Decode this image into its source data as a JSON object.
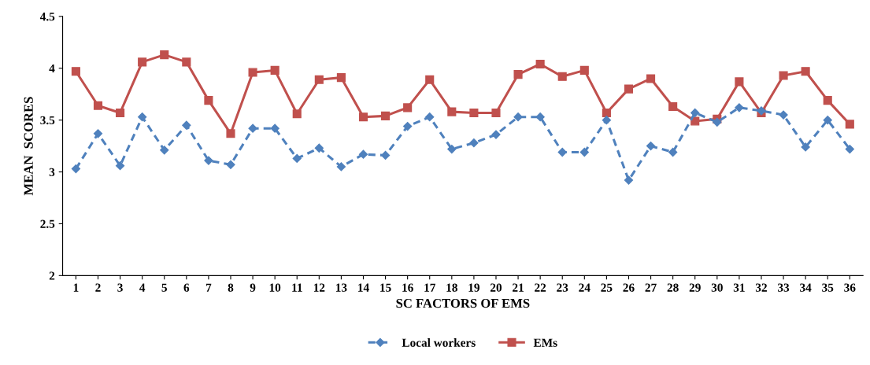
{
  "chart_data": {
    "type": "line",
    "xlabel": "SC FACTORS OF EMS",
    "ylabel": "MEAN  SCORES",
    "categories": [
      "1",
      "2",
      "3",
      "4",
      "5",
      "6",
      "7",
      "8",
      "9",
      "10",
      "11",
      "12",
      "13",
      "14",
      "15",
      "16",
      "17",
      "18",
      "19",
      "20",
      "21",
      "22",
      "23",
      "24",
      "25",
      "26",
      "27",
      "28",
      "29",
      "30",
      "31",
      "32",
      "33",
      "34",
      "35",
      "36"
    ],
    "series": [
      {
        "name": "Local workers",
        "color": "#4f81bd",
        "marker": "diamond",
        "line_style": "dashed",
        "values": [
          3.03,
          3.37,
          3.06,
          3.53,
          3.21,
          3.45,
          3.11,
          3.07,
          3.42,
          3.42,
          3.13,
          3.23,
          3.05,
          3.17,
          3.16,
          3.44,
          3.53,
          3.22,
          3.28,
          3.36,
          3.53,
          3.53,
          3.19,
          3.19,
          3.5,
          2.92,
          3.25,
          3.19,
          3.57,
          3.48,
          3.62,
          3.59,
          3.55,
          3.24,
          3.5,
          3.22
        ]
      },
      {
        "name": "EMs",
        "color": "#c0504d",
        "marker": "square",
        "line_style": "solid",
        "values": [
          3.97,
          3.64,
          3.57,
          4.06,
          4.13,
          4.06,
          3.69,
          3.37,
          3.96,
          3.98,
          3.56,
          3.89,
          3.91,
          3.53,
          3.54,
          3.62,
          3.89,
          3.58,
          3.57,
          3.57,
          3.94,
          4.04,
          3.92,
          3.98,
          3.57,
          3.8,
          3.9,
          3.63,
          3.49,
          3.51,
          3.87,
          3.57,
          3.93,
          3.97,
          3.69,
          3.46
        ]
      }
    ],
    "ylim": [
      2,
      4.5
    ],
    "yticks": [
      2,
      2.5,
      3,
      3.5,
      4,
      4.5
    ],
    "grid": false,
    "legend": "bottom"
  }
}
